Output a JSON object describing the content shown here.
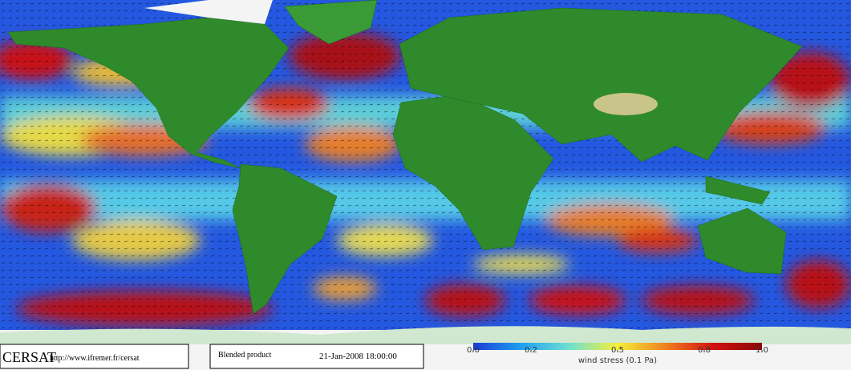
{
  "logo": "CERSAT",
  "url": "http://www.ifremer.fr/cersat",
  "product": "Blended product",
  "timestamp": "21-Jan-2008 18:00:00",
  "colorbar": {
    "label": "wind stress (0.1 Pa)",
    "lim": [
      0,
      1
    ],
    "ticks": [
      {
        "value": 0,
        "label": "0.0"
      },
      0.2,
      0.5,
      0.8,
      {
        "value": 1,
        "label": "1.0"
      }
    ],
    "colors": [
      "#1a3cd6",
      "#1fa0f0",
      "#6fe0d0",
      "#f4f03a",
      "#f08020",
      "#d21010",
      "#8a0808"
    ]
  }
}
